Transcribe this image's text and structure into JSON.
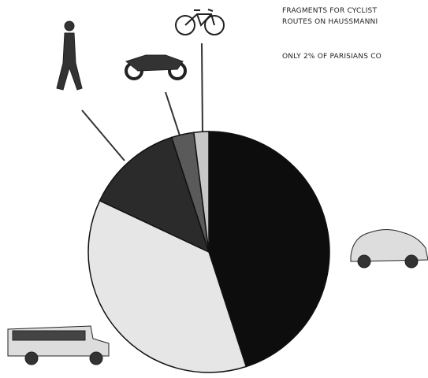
{
  "chart_data": {
    "type": "pie",
    "annotations": [
      "FRAGMENTS FOR CYCLIST",
      "ROUTES ON HAUSSMANNI",
      "ONLY 2% OF PARISIANS CO"
    ],
    "values": [
      45,
      37,
      13,
      3,
      2
    ],
    "colors": [
      "#0d0d0d",
      "#e6e6e6",
      "#2b2b2b",
      "#5a5a5a",
      "#c8c8c8"
    ]
  }
}
